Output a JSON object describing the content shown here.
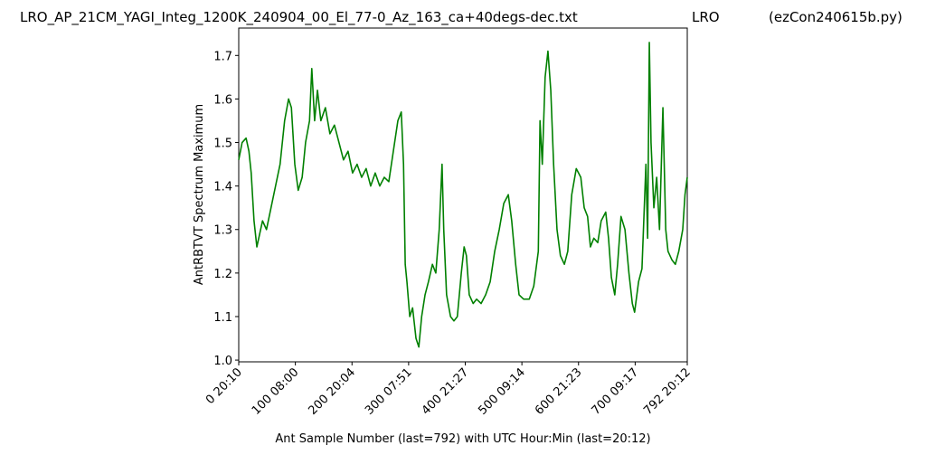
{
  "chart_data": {
    "type": "line",
    "title_left": "LRO_AP_21CM_YAGI_Integ_1200K_240904_00_El_77-0_Az_163_ca+40degs-dec.txt",
    "title_middle": "LRO",
    "title_right": "(ezCon240615b.py)",
    "x_label": "Ant Sample Number (last=792) with UTC Hour:Min (last=20:12)",
    "y_label": "AntRBTVT Spectrum Maximum",
    "xlim": [
      0,
      792
    ],
    "ylim": [
      0.996,
      1.763
    ],
    "xticks": [
      {
        "value": 0,
        "label": "0  20:10"
      },
      {
        "value": 100,
        "label": "100  08:00"
      },
      {
        "value": 200,
        "label": "200  20:04"
      },
      {
        "value": 300,
        "label": "300  07:51"
      },
      {
        "value": 400,
        "label": "400  21:27"
      },
      {
        "value": 500,
        "label": "500  09:14"
      },
      {
        "value": 600,
        "label": "600  21:23"
      },
      {
        "value": 700,
        "label": "700  09:17"
      },
      {
        "value": 792,
        "label": "792  20:12"
      }
    ],
    "yticks": [
      {
        "value": 1.0,
        "label": "1.0"
      },
      1.1,
      1.2,
      1.3,
      1.4,
      1.5,
      1.6,
      1.7
    ],
    "series": [
      {
        "color": "#008000",
        "x": [
          0,
          6,
          13,
          18,
          22,
          27,
          32,
          42,
          49,
          57,
          65,
          73,
          81,
          88,
          93,
          99,
          105,
          112,
          118,
          125,
          129,
          134,
          139,
          145,
          153,
          161,
          169,
          177,
          185,
          193,
          201,
          209,
          217,
          225,
          233,
          241,
          249,
          257,
          265,
          273,
          281,
          287,
          291,
          294,
          297,
          302,
          307,
          313,
          318,
          323,
          329,
          335,
          342,
          348,
          354,
          359,
          362,
          367,
          374,
          380,
          386,
          393,
          398,
          402,
          407,
          414,
          420,
          428,
          436,
          444,
          452,
          460,
          468,
          476,
          482,
          489,
          495,
          503,
          513,
          521,
          529,
          532,
          536,
          541,
          546,
          551,
          556,
          562,
          568,
          575,
          581,
          588,
          596,
          604,
          610,
          616,
          621,
          627,
          634,
          640,
          648,
          653,
          658,
          664,
          669,
          675,
          682,
          689,
          695,
          699,
          706,
          712,
          719,
          722,
          725,
          728,
          733,
          738,
          743,
          749,
          754,
          758,
          765,
          771,
          777,
          784,
          788,
          792
        ],
        "values": [
          1.46,
          1.5,
          1.51,
          1.48,
          1.43,
          1.32,
          1.26,
          1.32,
          1.3,
          1.35,
          1.4,
          1.45,
          1.55,
          1.6,
          1.58,
          1.45,
          1.39,
          1.42,
          1.5,
          1.55,
          1.67,
          1.55,
          1.62,
          1.55,
          1.58,
          1.52,
          1.54,
          1.5,
          1.46,
          1.48,
          1.43,
          1.45,
          1.42,
          1.44,
          1.4,
          1.43,
          1.4,
          1.42,
          1.41,
          1.48,
          1.55,
          1.57,
          1.45,
          1.22,
          1.18,
          1.1,
          1.12,
          1.05,
          1.03,
          1.1,
          1.15,
          1.18,
          1.22,
          1.2,
          1.3,
          1.45,
          1.3,
          1.15,
          1.1,
          1.09,
          1.1,
          1.2,
          1.26,
          1.24,
          1.15,
          1.13,
          1.14,
          1.13,
          1.15,
          1.18,
          1.25,
          1.3,
          1.36,
          1.38,
          1.32,
          1.22,
          1.15,
          1.14,
          1.14,
          1.17,
          1.25,
          1.55,
          1.45,
          1.65,
          1.71,
          1.62,
          1.45,
          1.3,
          1.24,
          1.22,
          1.25,
          1.38,
          1.44,
          1.42,
          1.35,
          1.33,
          1.26,
          1.28,
          1.27,
          1.32,
          1.34,
          1.28,
          1.19,
          1.15,
          1.22,
          1.33,
          1.3,
          1.2,
          1.13,
          1.11,
          1.18,
          1.21,
          1.45,
          1.28,
          1.73,
          1.5,
          1.35,
          1.42,
          1.3,
          1.58,
          1.3,
          1.25,
          1.23,
          1.22,
          1.25,
          1.3,
          1.38,
          1.42
        ]
      }
    ]
  }
}
